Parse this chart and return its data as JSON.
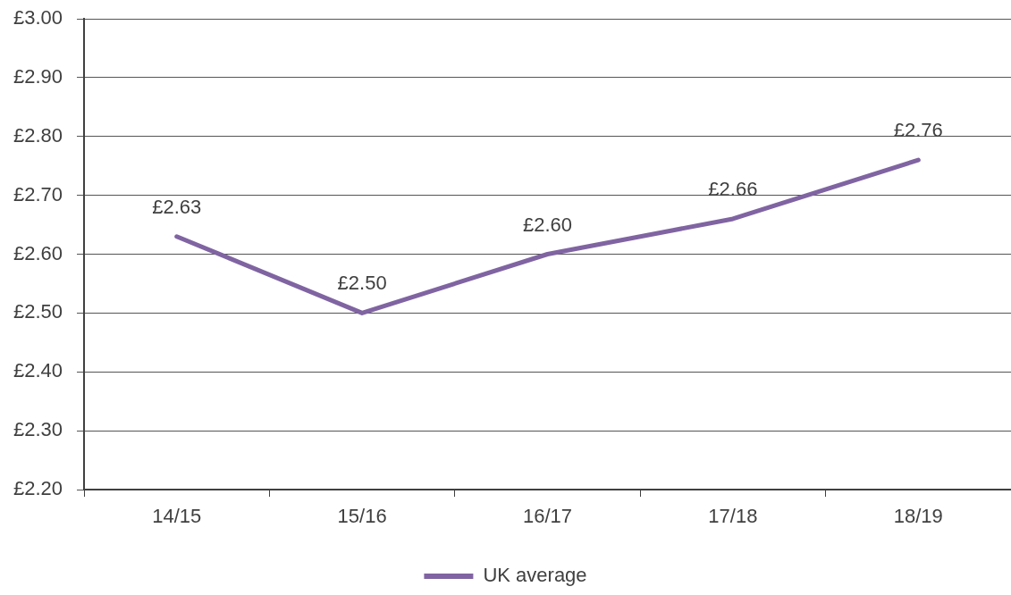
{
  "chart_data": {
    "type": "line",
    "categories": [
      "14/15",
      "15/16",
      "16/17",
      "17/18",
      "18/19"
    ],
    "series": [
      {
        "name": "UK average",
        "color": "#8064a2",
        "values": [
          2.63,
          2.5,
          2.6,
          2.66,
          2.76
        ],
        "value_labels": [
          "£2.63",
          "£2.50",
          "£2.60",
          "£2.66",
          "£2.76"
        ]
      }
    ],
    "ylim": [
      2.2,
      3.0
    ],
    "yticks": [
      {
        "value": 2.2,
        "label": "£2.20"
      },
      {
        "value": 2.3,
        "label": "£2.30"
      },
      {
        "value": 2.4,
        "label": "£2.40"
      },
      {
        "value": 2.5,
        "label": "£2.50"
      },
      {
        "value": 2.6,
        "label": "£2.60"
      },
      {
        "value": 2.7,
        "label": "£2.70"
      },
      {
        "value": 2.8,
        "label": "£2.80"
      },
      {
        "value": 2.9,
        "label": "£2.90"
      },
      {
        "value": 3.0,
        "label": "£3.00"
      }
    ],
    "grid": "y",
    "legend": "bottom",
    "marker": "none",
    "line_style": "solid"
  }
}
